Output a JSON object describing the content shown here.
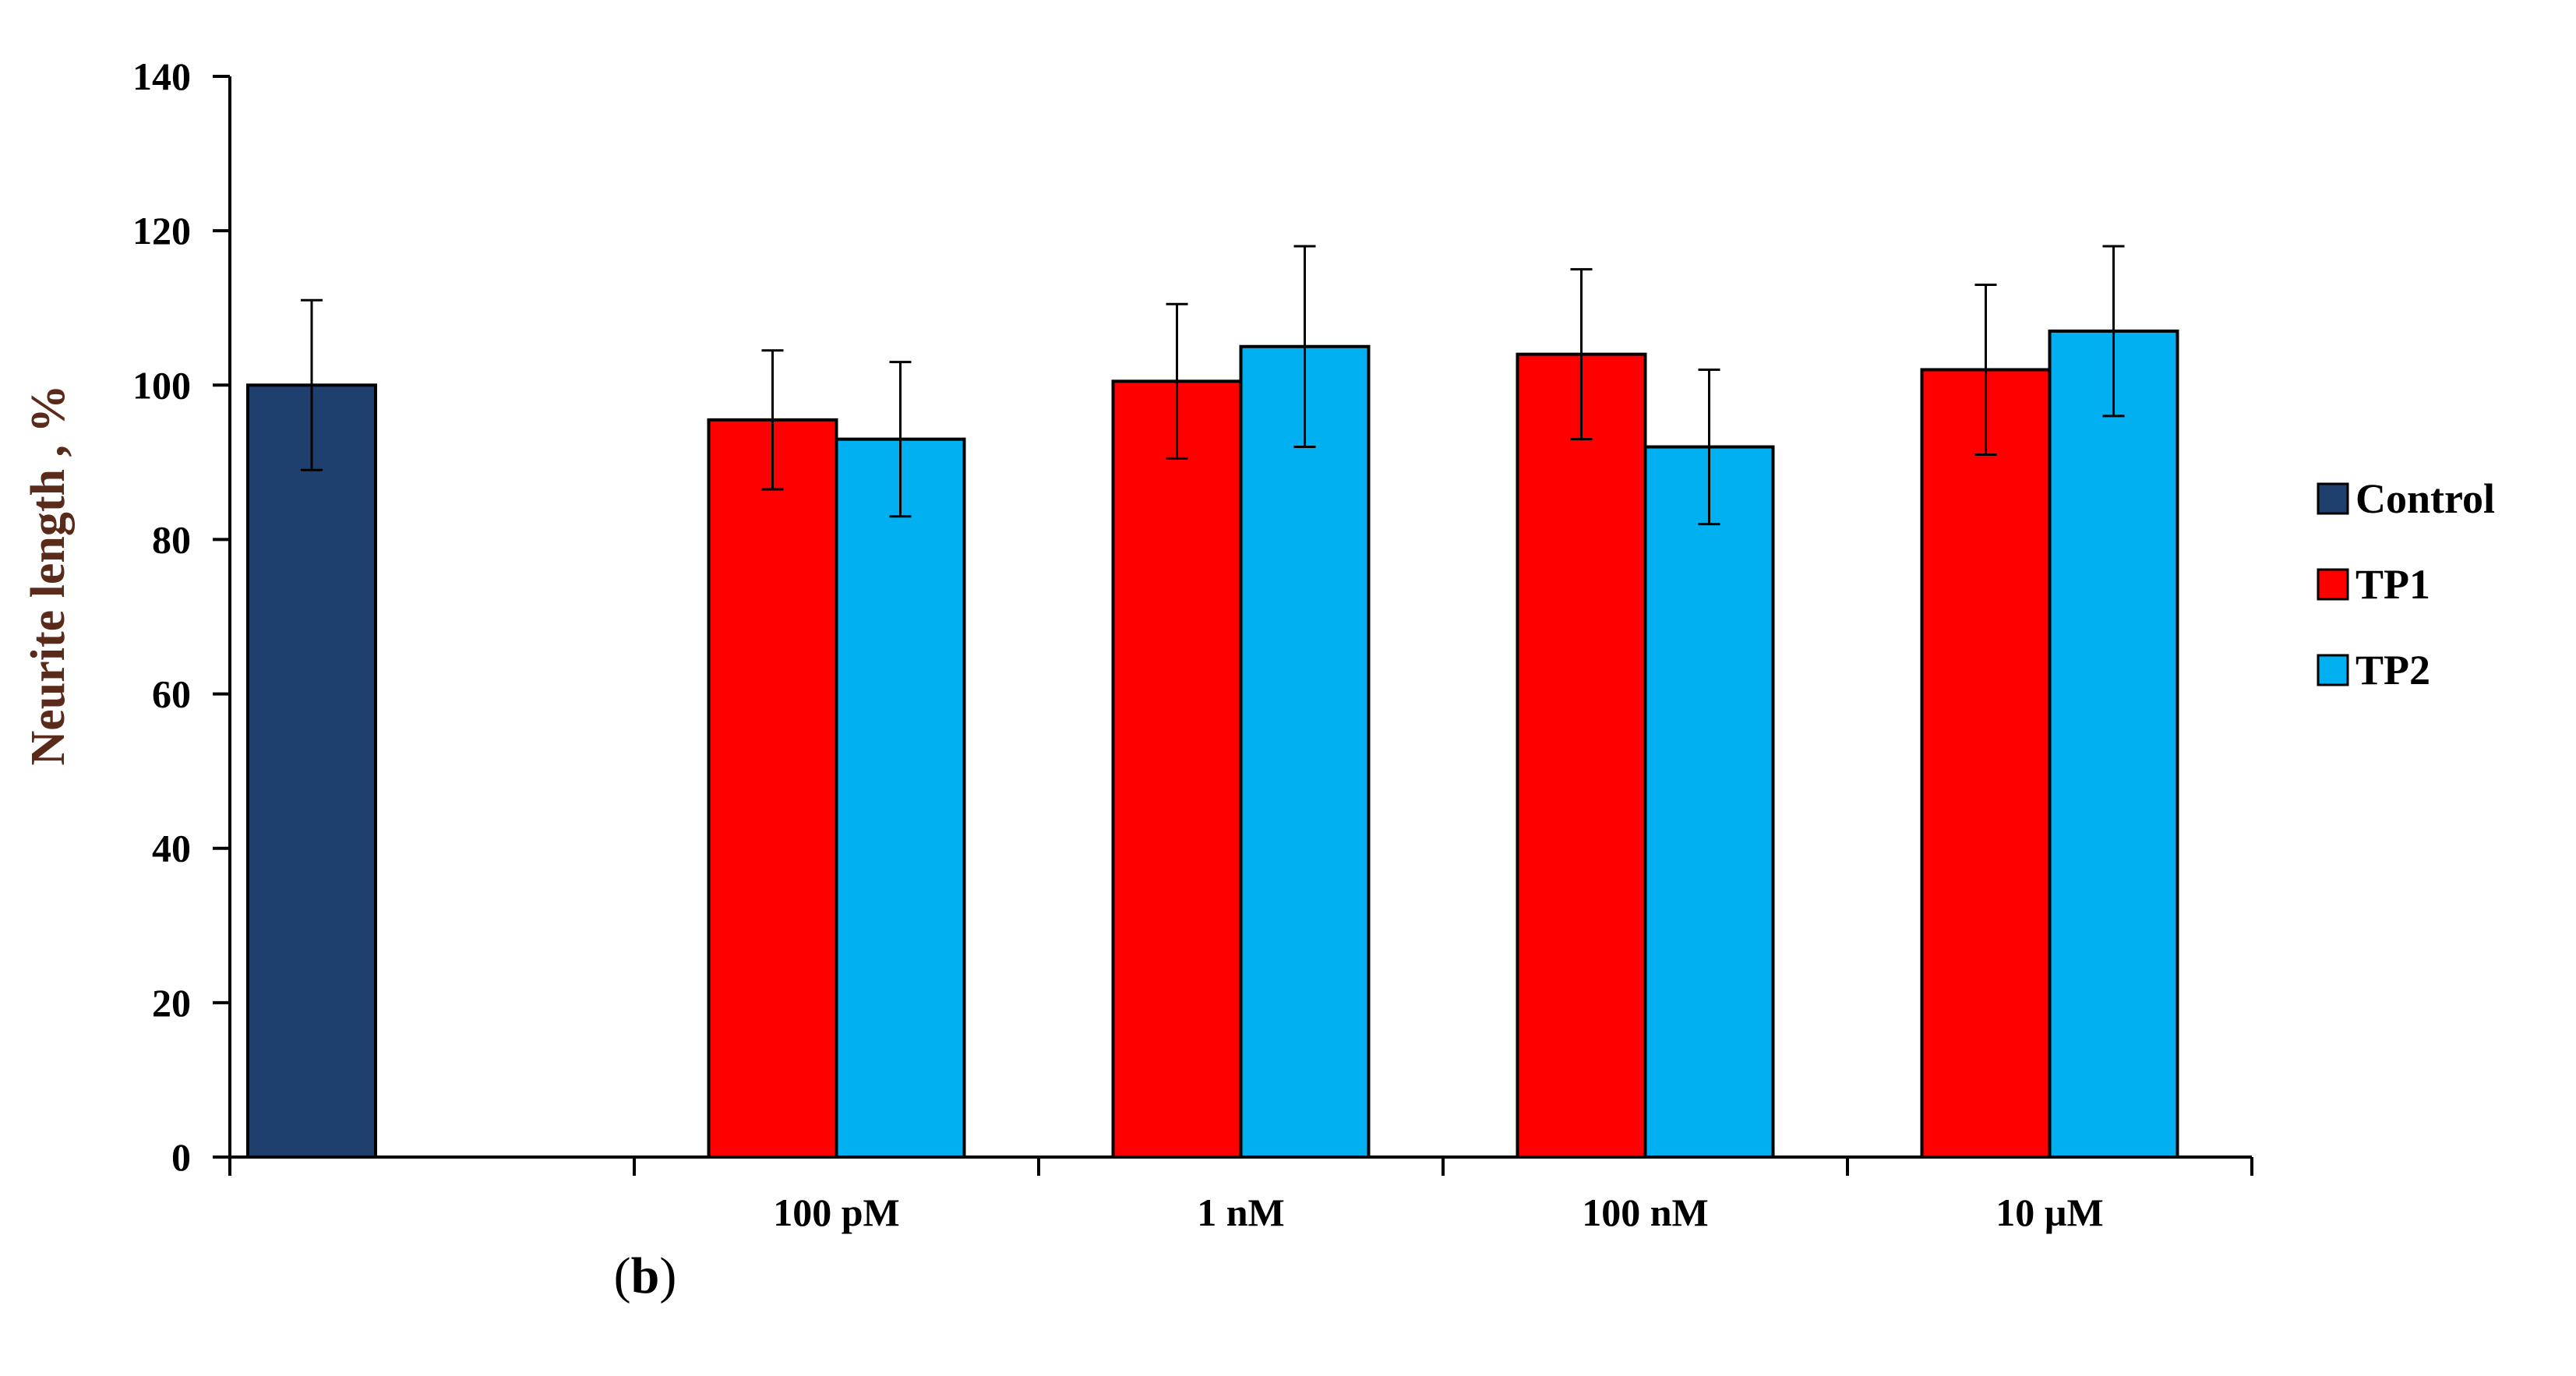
{
  "chart_data": {
    "type": "bar",
    "title": "",
    "xlabel": "",
    "ylabel": "Neurite  length , %",
    "ylim": [
      0,
      140
    ],
    "yticks": [
      0,
      20,
      40,
      60,
      80,
      100,
      120,
      140
    ],
    "grid": false,
    "legend_position": "right",
    "groups": [
      {
        "label": "",
        "bars": [
          {
            "series": "Control",
            "value": 100,
            "error": 11
          }
        ]
      },
      {
        "label": "100 pM",
        "bars": [
          {
            "series": "TP1",
            "value": 95.5,
            "error": 9
          },
          {
            "series": "TP2",
            "value": 93,
            "error": 10
          }
        ]
      },
      {
        "label": "1 nM",
        "bars": [
          {
            "series": "TP1",
            "value": 100.5,
            "error": 10
          },
          {
            "series": "TP2",
            "value": 105,
            "error": 13
          }
        ]
      },
      {
        "label": "100 nM",
        "bars": [
          {
            "series": "TP1",
            "value": 104,
            "error": 11
          },
          {
            "series": "TP2",
            "value": 92,
            "error": 10
          }
        ]
      },
      {
        "label": "10 µM",
        "bars": [
          {
            "series": "TP1",
            "value": 102,
            "error": 11
          },
          {
            "series": "TP2",
            "value": 107,
            "error": 11
          }
        ]
      }
    ],
    "series": [
      {
        "name": "Control",
        "color": "#1f3f6e"
      },
      {
        "name": "TP1",
        "color": "#ff0000"
      },
      {
        "name": "TP2",
        "color": "#00b0f0"
      }
    ]
  },
  "panel_label": {
    "open": "(",
    "letter": "b",
    "close": ")"
  }
}
